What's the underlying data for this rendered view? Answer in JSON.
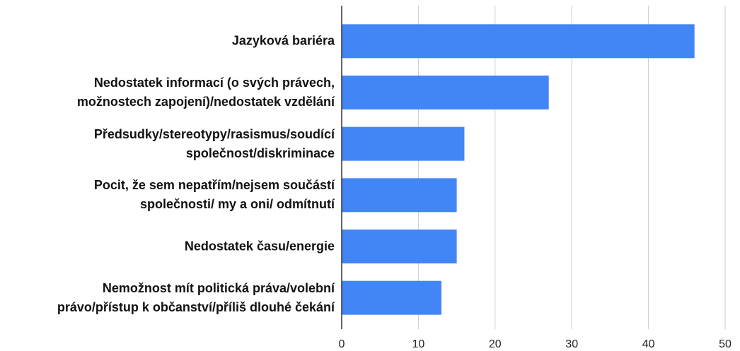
{
  "chart_data": {
    "type": "bar",
    "orientation": "horizontal",
    "categories": [
      "Jazyková bariéra",
      "Nedostatek informací (o svých právech,\nmožnostech zapojení)/nedostatek vzdělání",
      "Předsudky/stereotypy/rasismus/soudící\nspolečnost/diskriminace",
      "Pocit, že sem nepatřím/nejsem součástí\nspolečnosti/ my a oni/ odmítnutí",
      "Nedostatek času/energie",
      "Nemožnost mít politická práva/volební\nprávo/přístup k občanství/příliš dlouhé čekání"
    ],
    "values": [
      46,
      27,
      16,
      15,
      15,
      13
    ],
    "color": "#4285f4",
    "xlim": [
      0,
      50
    ],
    "xticks": [
      0,
      10,
      20,
      30,
      40,
      50
    ],
    "grid": true
  }
}
